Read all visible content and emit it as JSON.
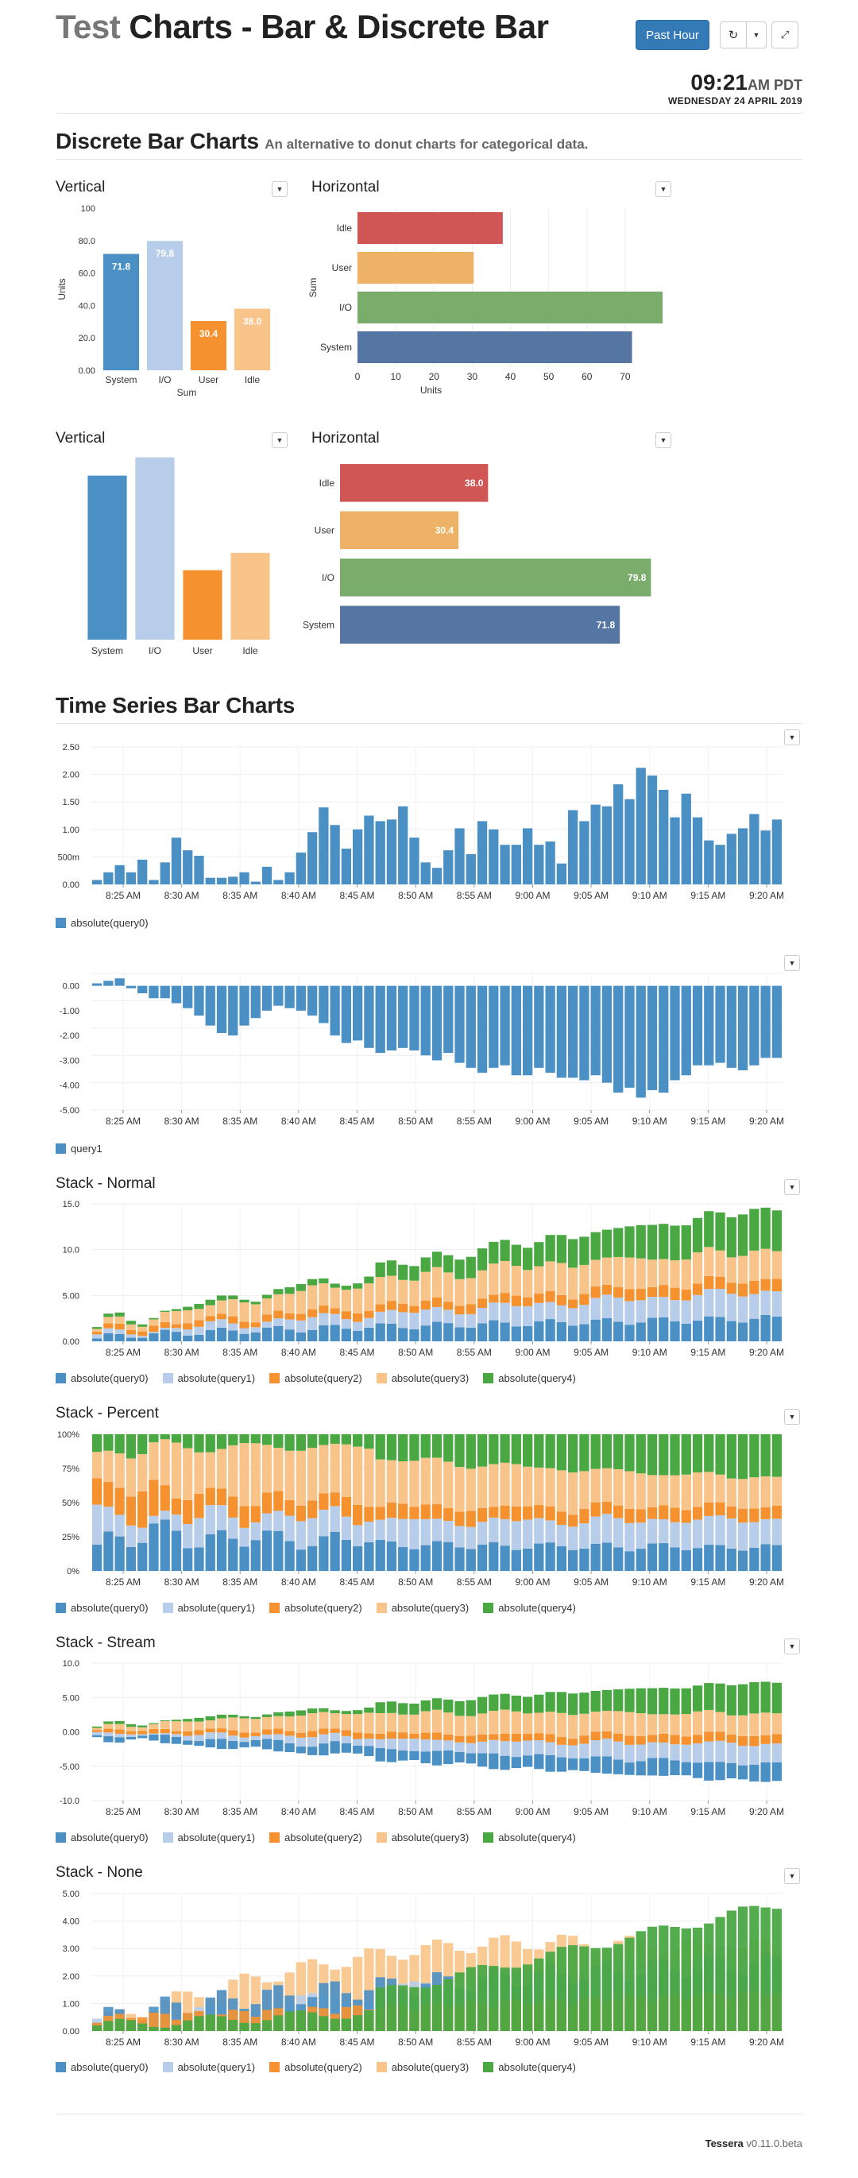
{
  "header": {
    "title_muted": "Test",
    "title_main": "Charts - Bar & Discrete Bar",
    "past_hour_label": "Past Hour",
    "refresh_icon": "refresh-icon",
    "time": "09:21",
    "ampm": "AM PDT",
    "date": "WEDNESDAY 24 APRIL 2019"
  },
  "sections": {
    "discrete_title": "Discrete Bar Charts",
    "discrete_subtitle": "An alternative to donut charts for categorical data.",
    "timeseries_title": "Time Series Bar Charts"
  },
  "panels": {
    "p1": "Vertical",
    "p2": "Horizontal",
    "p3": "Vertical",
    "p4": "Horizontal",
    "p7": "Stack - Normal",
    "p8": "Stack - Percent",
    "p9": "Stack - Stream",
    "p10": "Stack - None"
  },
  "colors": {
    "q0": "#4a90c4",
    "q1": "#b7cde9",
    "q2": "#f5922f",
    "q3": "#f9c48a",
    "q4": "#4aa843",
    "cat_system": "#4a90c4",
    "cat_io": "#b7cde9",
    "cat_user": "#f5922f",
    "cat_idle": "#f9c48a",
    "h_idle": "#d05656",
    "h_user": "#eeb266",
    "h_io": "#7aac6c",
    "h_system": "#5575a3"
  },
  "legend": [
    "absolute(query0)",
    "absolute(query1)",
    "absolute(query2)",
    "absolute(query3)",
    "absolute(query4)"
  ],
  "footer": {
    "brand": "Tessera",
    "version": "v0.11.0.beta"
  },
  "chart_data": [
    {
      "type": "bar",
      "id": "c1",
      "categories": [
        "System",
        "I/O",
        "User",
        "Idle"
      ],
      "values": [
        71.8,
        79.8,
        30.4,
        38.0
      ],
      "xlabel": "Sum",
      "ylabel": "Units",
      "ylim": [
        0,
        100
      ],
      "yticks": [
        "0.00",
        "20.0",
        "40.0",
        "60.0",
        "80.0",
        "100"
      ]
    },
    {
      "type": "bar",
      "id": "c2",
      "orientation": "horizontal",
      "categories": [
        "Idle",
        "User",
        "I/O",
        "System"
      ],
      "values": [
        38.0,
        30.4,
        79.8,
        71.8
      ],
      "xlabel": "Units",
      "ylabel": "Sum",
      "xticks": [
        "0",
        "10",
        "20",
        "30",
        "40",
        "50",
        "60",
        "70"
      ],
      "xlim": [
        0,
        80
      ]
    },
    {
      "type": "bar",
      "id": "c3",
      "categories": [
        "System",
        "I/O",
        "User",
        "Idle"
      ],
      "values": [
        71.8,
        79.8,
        30.4,
        38.0
      ]
    },
    {
      "type": "bar",
      "id": "c4",
      "orientation": "horizontal",
      "categories": [
        "Idle",
        "User",
        "I/O",
        "System"
      ],
      "values": [
        38.0,
        30.4,
        79.8,
        71.8
      ],
      "value_labels": [
        "38.0",
        "30.4",
        "79.8",
        "71.8"
      ]
    },
    {
      "type": "bar",
      "id": "c5",
      "x_ticks": [
        "8:25 AM",
        "8:30 AM",
        "8:35 AM",
        "8:40 AM",
        "8:45 AM",
        "8:50 AM",
        "8:55 AM",
        "9:00 AM",
        "9:05 AM",
        "9:10 AM",
        "9:15 AM",
        "9:20 AM"
      ],
      "ylim": [
        0,
        2.5
      ],
      "yticks": [
        "0.00",
        "500m",
        "1.00",
        "1.50",
        "2.00",
        "2.50"
      ],
      "series": [
        {
          "name": "absolute(query0)",
          "values": [
            0.08,
            0.22,
            0.35,
            0.22,
            0.45,
            0.08,
            0.4,
            0.85,
            0.62,
            0.52,
            0.12,
            0.12,
            0.14,
            0.22,
            0.05,
            0.32,
            0.08,
            0.22,
            0.58,
            0.95,
            1.4,
            1.08,
            0.65,
            1.0,
            1.25,
            1.15,
            1.18,
            1.42,
            0.85,
            0.4,
            0.3,
            0.62,
            1.02,
            0.55,
            1.15,
            1.0,
            0.72,
            0.72,
            1.02,
            0.72,
            0.78,
            0.38,
            1.35,
            1.15,
            1.45,
            1.42,
            1.82,
            1.55,
            2.12,
            1.98,
            1.72,
            1.22,
            1.65,
            1.22,
            0.8,
            0.72,
            0.92,
            1.02,
            1.28,
            0.98,
            1.18
          ]
        }
      ]
    },
    {
      "type": "bar",
      "id": "c6",
      "x_ticks": [
        "8:25 AM",
        "8:30 AM",
        "8:35 AM",
        "8:40 AM",
        "8:45 AM",
        "8:50 AM",
        "8:55 AM",
        "9:00 AM",
        "9:05 AM",
        "9:10 AM",
        "9:15 AM",
        "9:20 AM"
      ],
      "ylim": [
        -5,
        0.5
      ],
      "yticks": [
        "0.00",
        "-1.00",
        "-2.00",
        "-3.00",
        "-4.00",
        "-5.00"
      ],
      "series": [
        {
          "name": "query1",
          "values": [
            0.1,
            0.2,
            0.3,
            -0.1,
            -0.3,
            -0.5,
            -0.5,
            -0.7,
            -0.9,
            -1.2,
            -1.6,
            -1.9,
            -2.0,
            -1.6,
            -1.3,
            -1.0,
            -0.8,
            -0.9,
            -1.0,
            -1.2,
            -1.5,
            -2.0,
            -2.3,
            -2.2,
            -2.5,
            -2.7,
            -2.6,
            -2.5,
            -2.6,
            -2.8,
            -3.0,
            -2.7,
            -3.1,
            -3.3,
            -3.5,
            -3.3,
            -3.2,
            -3.6,
            -3.6,
            -3.3,
            -3.5,
            -3.7,
            -3.7,
            -3.8,
            -3.6,
            -3.9,
            -4.3,
            -4.1,
            -4.5,
            -4.2,
            -4.3,
            -3.8,
            -3.6,
            -3.2,
            -3.2,
            -3.1,
            -3.3,
            -3.4,
            -3.2,
            -2.9,
            -2.9
          ]
        }
      ]
    },
    {
      "type": "bar",
      "id": "c7",
      "stack": "normal",
      "x_ticks": [
        "8:25 AM",
        "8:30 AM",
        "8:35 AM",
        "8:40 AM",
        "8:45 AM",
        "8:50 AM",
        "8:55 AM",
        "9:00 AM",
        "9:05 AM",
        "9:10 AM",
        "9:15 AM",
        "9:20 AM"
      ],
      "ylim": [
        0,
        15
      ],
      "yticks": [
        "0.00",
        "5.00",
        "10.0",
        "15.0"
      ]
    },
    {
      "type": "bar",
      "id": "c8",
      "stack": "percent",
      "x_ticks": [
        "8:25 AM",
        "8:30 AM",
        "8:35 AM",
        "8:40 AM",
        "8:45 AM",
        "8:50 AM",
        "8:55 AM",
        "9:00 AM",
        "9:05 AM",
        "9:10 AM",
        "9:15 AM",
        "9:20 AM"
      ],
      "yticks": [
        "0%",
        "25%",
        "50%",
        "75%",
        "100%"
      ]
    },
    {
      "type": "bar",
      "id": "c9",
      "stack": "stream",
      "x_ticks": [
        "8:25 AM",
        "8:30 AM",
        "8:35 AM",
        "8:40 AM",
        "8:45 AM",
        "8:50 AM",
        "8:55 AM",
        "9:00 AM",
        "9:05 AM",
        "9:10 AM",
        "9:15 AM",
        "9:20 AM"
      ],
      "ylim": [
        -10,
        10
      ],
      "yticks": [
        "10.0",
        "5.00",
        "0.00",
        "-5.00",
        "-10.0"
      ]
    },
    {
      "type": "bar",
      "id": "c10",
      "stack": "none",
      "x_ticks": [
        "8:25 AM",
        "8:30 AM",
        "8:35 AM",
        "8:40 AM",
        "8:45 AM",
        "8:50 AM",
        "8:55 AM",
        "9:00 AM",
        "9:05 AM",
        "9:10 AM",
        "9:15 AM",
        "9:20 AM"
      ],
      "ylim": [
        0,
        5
      ],
      "yticks": [
        "0.00",
        "1.00",
        "2.00",
        "3.00",
        "4.00",
        "5.00"
      ]
    }
  ]
}
